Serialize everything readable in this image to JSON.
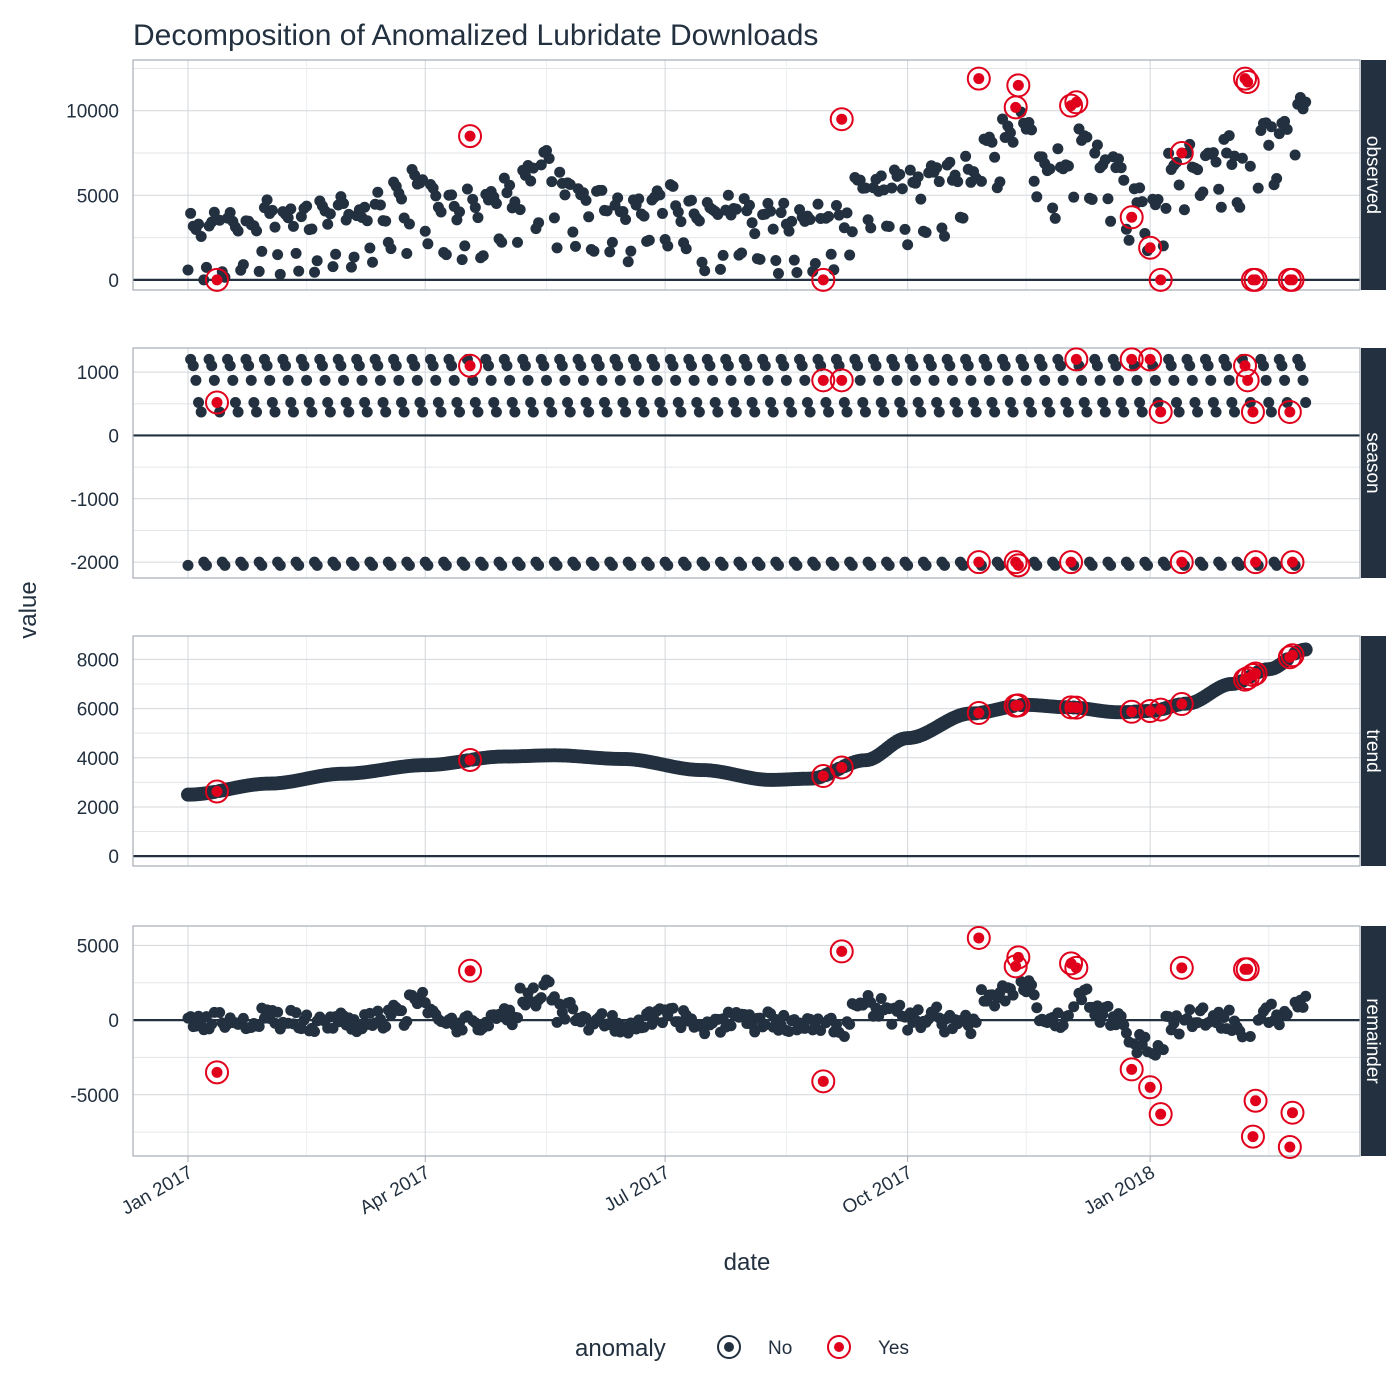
{
  "chart_data": {
    "type": "scatter",
    "title": "Decomposition of Anomalized Lubridate Downloads",
    "xlabel": "date",
    "ylabel": "value",
    "x_range": [
      "2017-01-01",
      "2018-03-01"
    ],
    "x_ticks": [
      "Jan 2017",
      "Apr 2017",
      "Jul 2017",
      "Oct 2017",
      "Jan 2018"
    ],
    "x_tick_dates": [
      "2017-01-01",
      "2017-04-01",
      "2017-07-01",
      "2017-10-01",
      "2018-01-01"
    ],
    "grid": true,
    "legend": {
      "position": "bottom",
      "title": "anomaly",
      "entries": [
        {
          "label": "No",
          "color": "#22303f"
        },
        {
          "label": "Yes",
          "color": "#e0001b"
        }
      ]
    },
    "facets": [
      {
        "key": "observed",
        "label": "observed",
        "ylim": [
          -600,
          13000
        ],
        "ticks": [
          0,
          5000,
          10000
        ],
        "tick_labels": [
          "0",
          "5000",
          "10000"
        ]
      },
      {
        "key": "season",
        "label": "season",
        "ylim": [
          -2250,
          1380
        ],
        "ticks": [
          -2000,
          -1000,
          0,
          1000
        ],
        "tick_labels": [
          "-2000",
          "-1000",
          "0",
          "1000"
        ]
      },
      {
        "key": "trend",
        "label": "trend",
        "ylim": [
          -400,
          8950
        ],
        "ticks": [
          0,
          2000,
          4000,
          6000,
          8000
        ],
        "tick_labels": [
          "0",
          "2000",
          "4000",
          "6000",
          "8000"
        ]
      },
      {
        "key": "remainder",
        "label": "remainder",
        "ylim": [
          -9100,
          6300
        ],
        "ticks": [
          -5000,
          0,
          5000
        ],
        "tick_labels": [
          "-5000",
          "0",
          "5000"
        ]
      }
    ],
    "season_weekly_pattern": [
      -2050,
      1200,
      1100,
      870,
      520,
      370,
      -2000
    ],
    "trend_knots": [
      [
        "2017-01-01",
        2500
      ],
      [
        "2017-02-01",
        2950
      ],
      [
        "2017-03-01",
        3350
      ],
      [
        "2017-04-01",
        3700
      ],
      [
        "2017-05-01",
        4050
      ],
      [
        "2017-05-20",
        4100
      ],
      [
        "2017-06-15",
        3950
      ],
      [
        "2017-07-15",
        3500
      ],
      [
        "2017-08-10",
        3100
      ],
      [
        "2017-08-25",
        3150
      ],
      [
        "2017-09-15",
        3900
      ],
      [
        "2017-10-01",
        4800
      ],
      [
        "2017-10-25",
        5800
      ],
      [
        "2017-11-15",
        6150
      ],
      [
        "2017-12-01",
        6050
      ],
      [
        "2017-12-20",
        5850
      ],
      [
        "2018-01-01",
        5900
      ],
      [
        "2018-01-15",
        6200
      ],
      [
        "2018-02-01",
        7000
      ],
      [
        "2018-02-15",
        7600
      ],
      [
        "2018-03-01",
        8400
      ]
    ],
    "remainder_weekly_level": [
      -300,
      0,
      100,
      0,
      200,
      100,
      -100,
      0,
      0,
      -200,
      0,
      300,
      1200,
      200,
      -500,
      -300,
      0,
      300,
      1500,
      2000,
      500,
      0,
      100,
      -200,
      0,
      300,
      100,
      0,
      -400,
      0,
      -200,
      100,
      -300,
      0,
      -500,
      -800,
      1200,
      800,
      300,
      0,
      200,
      -200,
      -300,
      1500,
      1800,
      2000,
      500,
      0,
      1500,
      400,
      -200,
      -1500,
      -2000,
      -300,
      200,
      300,
      0,
      -500,
      500,
      200,
      1200
    ],
    "anomalies": [
      {
        "date": "2017-01-12",
        "observed": 0,
        "remainder": -3500
      },
      {
        "date": "2017-04-18",
        "observed": 8500,
        "remainder": 3300
      },
      {
        "date": "2017-08-30",
        "observed": 0,
        "remainder": -4100
      },
      {
        "date": "2017-09-06",
        "observed": 9500,
        "remainder": 4600
      },
      {
        "date": "2017-10-28",
        "observed": 11900,
        "remainder": 5500
      },
      {
        "date": "2017-11-11",
        "observed": 10200,
        "remainder": 3600
      },
      {
        "date": "2017-11-12",
        "observed": 11500,
        "remainder": 4200
      },
      {
        "date": "2017-12-02",
        "observed": 10300,
        "remainder": 3800
      },
      {
        "date": "2017-12-04",
        "observed": 10500,
        "remainder": 3500
      },
      {
        "date": "2017-12-25",
        "observed": 3700,
        "remainder": -3300
      },
      {
        "date": "2018-01-01",
        "observed": 1900,
        "remainder": -4500
      },
      {
        "date": "2018-01-05",
        "observed": 0,
        "remainder": -6300
      },
      {
        "date": "2018-01-13",
        "observed": 7500,
        "remainder": 3500
      },
      {
        "date": "2018-02-06",
        "observed": 11900,
        "remainder": 3400
      },
      {
        "date": "2018-02-07",
        "observed": 11700,
        "remainder": 3400
      },
      {
        "date": "2018-02-09",
        "observed": 0,
        "remainder": -7800
      },
      {
        "date": "2018-02-10",
        "observed": 0,
        "remainder": -5400
      },
      {
        "date": "2018-02-23",
        "observed": 0,
        "remainder": -8500
      },
      {
        "date": "2018-02-24",
        "observed": 0,
        "remainder": -6200
      }
    ]
  }
}
